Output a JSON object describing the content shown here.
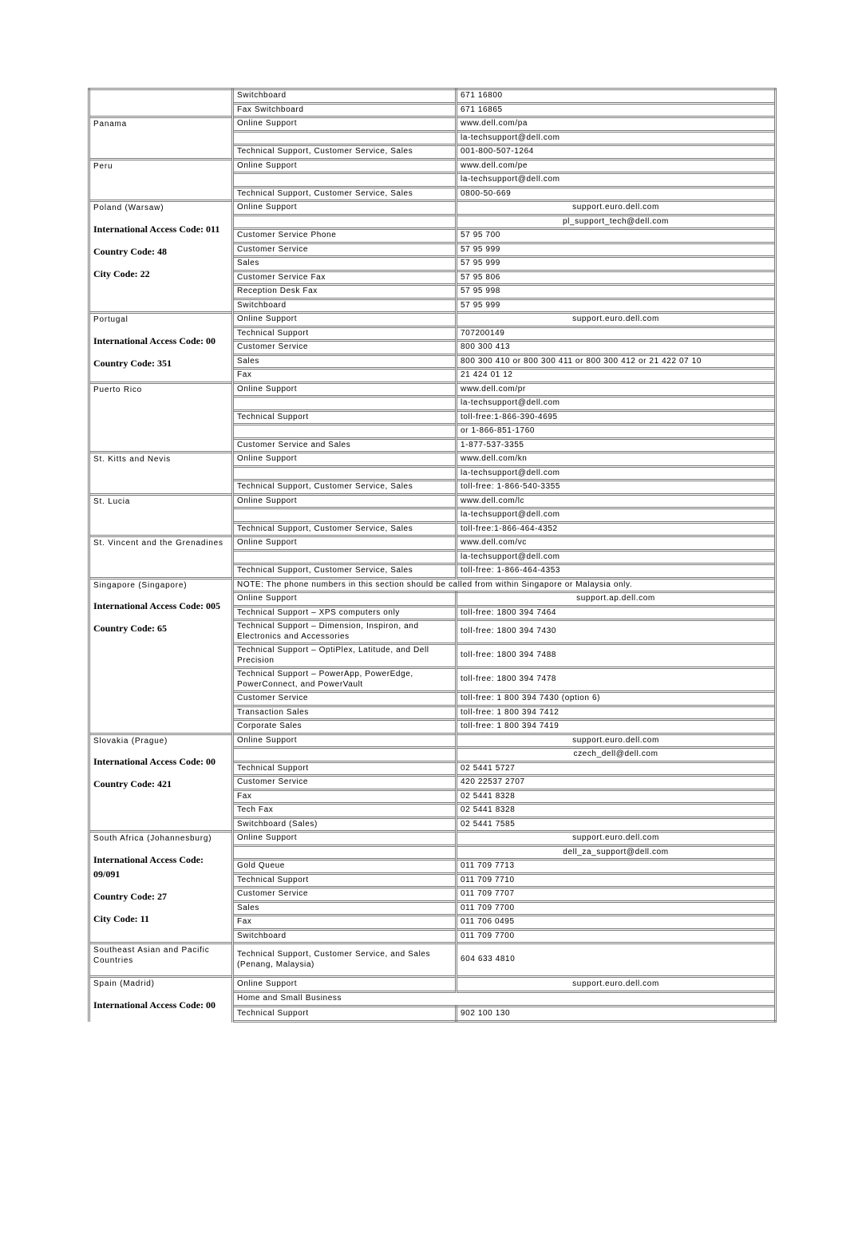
{
  "locations": [
    {
      "country_label": "",
      "codes": [],
      "rows": [
        {
          "dept": "Switchboard",
          "value": "671 16800"
        },
        {
          "dept": "Fax Switchboard",
          "value": "671 16865"
        }
      ]
    },
    {
      "country_label": "Panama",
      "codes": [],
      "rows": [
        {
          "dept": "Online Support",
          "value": "www.dell.com/pa"
        },
        {
          "dept": "",
          "value": "la-techsupport@dell.com"
        },
        {
          "dept": "Technical Support, Customer Service, Sales",
          "value": "001-800-507-1264"
        }
      ]
    },
    {
      "country_label": "Peru",
      "codes": [],
      "rows": [
        {
          "dept": "Online Support",
          "value": "www.dell.com/pe"
        },
        {
          "dept": "",
          "value": "la-techsupport@dell.com"
        },
        {
          "dept": "Technical Support, Customer Service, Sales",
          "value": "0800-50-669"
        }
      ]
    },
    {
      "country_label": "Poland (Warsaw)",
      "codes": [
        "International Access Code: 011",
        "Country Code: 48",
        "City Code: 22"
      ],
      "rows": [
        {
          "dept": "Online Support",
          "value": "support.euro.dell.com",
          "center": true
        },
        {
          "dept": "",
          "value": "pl_support_tech@dell.com",
          "center": true
        },
        {
          "dept": "Customer Service Phone",
          "value": "57 95 700"
        },
        {
          "dept": "Customer Service",
          "value": "57 95 999"
        },
        {
          "dept": "Sales",
          "value": "57 95 999"
        },
        {
          "dept": "Customer Service Fax",
          "value": "57 95 806"
        },
        {
          "dept": "Reception Desk Fax",
          "value": "57 95 998"
        },
        {
          "dept": "Switchboard",
          "value": "57 95 999"
        }
      ]
    },
    {
      "country_label": "Portugal",
      "codes": [
        "International Access Code: 00",
        "Country Code: 351"
      ],
      "rows": [
        {
          "dept": "Online Support",
          "value": "support.euro.dell.com",
          "center": true,
          "tall": true
        },
        {
          "dept": "Technical Support",
          "value": "707200149",
          "tall": true
        },
        {
          "dept": "Customer Service",
          "value": "800 300 413",
          "tall": true
        },
        {
          "dept": "Sales",
          "value": "800 300 410 or 800 300 411 or 800 300 412 or 21 422 07 10",
          "vtall": true
        },
        {
          "dept": "Fax",
          "value": "21 424 01 12",
          "tall": true
        }
      ]
    },
    {
      "country_label": "Puerto Rico",
      "codes": [],
      "rows": [
        {
          "dept": "Online Support",
          "value": "www.dell.com/pr"
        },
        {
          "dept": "",
          "value": "la-techsupport@dell.com"
        },
        {
          "dept": "Technical Support",
          "value": "toll-free:1-866-390-4695"
        },
        {
          "dept": "",
          "value": "or 1-866-851-1760"
        },
        {
          "dept": "Customer Service and Sales",
          "value": "1-877-537-3355"
        }
      ]
    },
    {
      "country_label": "St. Kitts and Nevis",
      "codes": [],
      "rows": [
        {
          "dept": "Online Support",
          "value": "www.dell.com/kn"
        },
        {
          "dept": "",
          "value": "la-techsupport@dell.com"
        },
        {
          "dept": "Technical Support, Customer Service, Sales",
          "value": "toll-free: 1-866-540-3355"
        }
      ]
    },
    {
      "country_label": "St. Lucia",
      "codes": [],
      "rows": [
        {
          "dept": "Online Support",
          "value": "www.dell.com/lc"
        },
        {
          "dept": "",
          "value": "la-techsupport@dell.com"
        },
        {
          "dept": "Technical Support, Customer Service, Sales",
          "value": "toll-free:1-866-464-4352"
        }
      ]
    },
    {
      "country_label": "St. Vincent and the Grenadines",
      "codes": [],
      "rows": [
        {
          "dept": "Online Support",
          "value": "www.dell.com/vc"
        },
        {
          "dept": "",
          "value": "la-techsupport@dell.com"
        },
        {
          "dept": "Technical Support, Customer Service, Sales",
          "value": "toll-free: 1-866-464-4353"
        }
      ]
    },
    {
      "country_label": "Singapore (Singapore)",
      "codes": [
        "International Access Code: 005",
        "Country Code: 65"
      ],
      "rows": [
        {
          "dept": "NOTE: The phone numbers in this section should be called from within Singapore or Malaysia only.",
          "value": "",
          "span2": true
        },
        {
          "dept": "Online Support",
          "value": "support.ap.dell.com",
          "center": true
        },
        {
          "dept": "Technical Support – XPS computers only",
          "value": "toll-free: 1800 394 7464"
        },
        {
          "dept": "Technical Support – Dimension, Inspiron, and Electronics and Accessories",
          "value": "toll-free: 1800 394 7430"
        },
        {
          "dept": "Technical Support – OptiPlex, Latitude, and Dell Precision",
          "value": "toll-free: 1800 394 7488"
        },
        {
          "dept": "Technical Support – PowerApp, PowerEdge, PowerConnect, and PowerVault",
          "value": "toll-free: 1800 394 7478"
        },
        {
          "dept": "Customer Service",
          "value": "toll-free: 1 800 394 7430 (option 6)"
        },
        {
          "dept": "Transaction Sales",
          "value": "toll-free: 1 800 394 7412"
        },
        {
          "dept": "Corporate Sales",
          "value": "toll-free: 1 800 394 7419"
        }
      ]
    },
    {
      "country_label": "Slovakia (Prague)",
      "codes": [
        "International Access Code: 00",
        "Country Code: 421"
      ],
      "rows": [
        {
          "dept": "Online Support",
          "value": "support.euro.dell.com",
          "center": true
        },
        {
          "dept": "",
          "value": "czech_dell@dell.com",
          "center": true
        },
        {
          "dept": "Technical Support",
          "value": "02 5441 5727"
        },
        {
          "dept": "Customer Service",
          "value": "420 22537 2707"
        },
        {
          "dept": "Fax",
          "value": "02 5441 8328"
        },
        {
          "dept": "Tech Fax",
          "value": "02 5441 8328"
        },
        {
          "dept": "Switchboard (Sales)",
          "value": "02 5441 7585"
        }
      ]
    },
    {
      "country_label": "South Africa (Johannesburg)",
      "codes": [
        "International Access Code: 09/091",
        "Country Code: 27",
        "City Code: 11"
      ],
      "rows": [
        {
          "dept": "Online Support",
          "value": "support.euro.dell.com",
          "center": true
        },
        {
          "dept": "",
          "value": "dell_za_support@dell.com",
          "center": true
        },
        {
          "dept": "Gold Queue",
          "value": "011 709 7713"
        },
        {
          "dept": "Technical Support",
          "value": "011 709 7710"
        },
        {
          "dept": "Customer Service",
          "value": "011 709 7707"
        },
        {
          "dept": "Sales",
          "value": "011 709 7700"
        },
        {
          "dept": "Fax",
          "value": "011 706 0495"
        },
        {
          "dept": "Switchboard",
          "value": "011 709 7700"
        }
      ]
    },
    {
      "country_label": "Southeast Asian and Pacific Countries",
      "codes": [],
      "rows": [
        {
          "dept": "Technical Support, Customer Service, and Sales (Penang, Malaysia)",
          "value": "604 633 4810"
        }
      ]
    },
    {
      "country_label": "Spain (Madrid)",
      "codes": [
        "International Access Code: 00"
      ],
      "rows": [
        {
          "dept": "Online Support",
          "value": "support.euro.dell.com",
          "center": true
        },
        {
          "dept": "Home and Small Business",
          "value": "",
          "span2": true
        },
        {
          "dept": "Technical Support",
          "value": "902 100 130"
        }
      ]
    }
  ]
}
